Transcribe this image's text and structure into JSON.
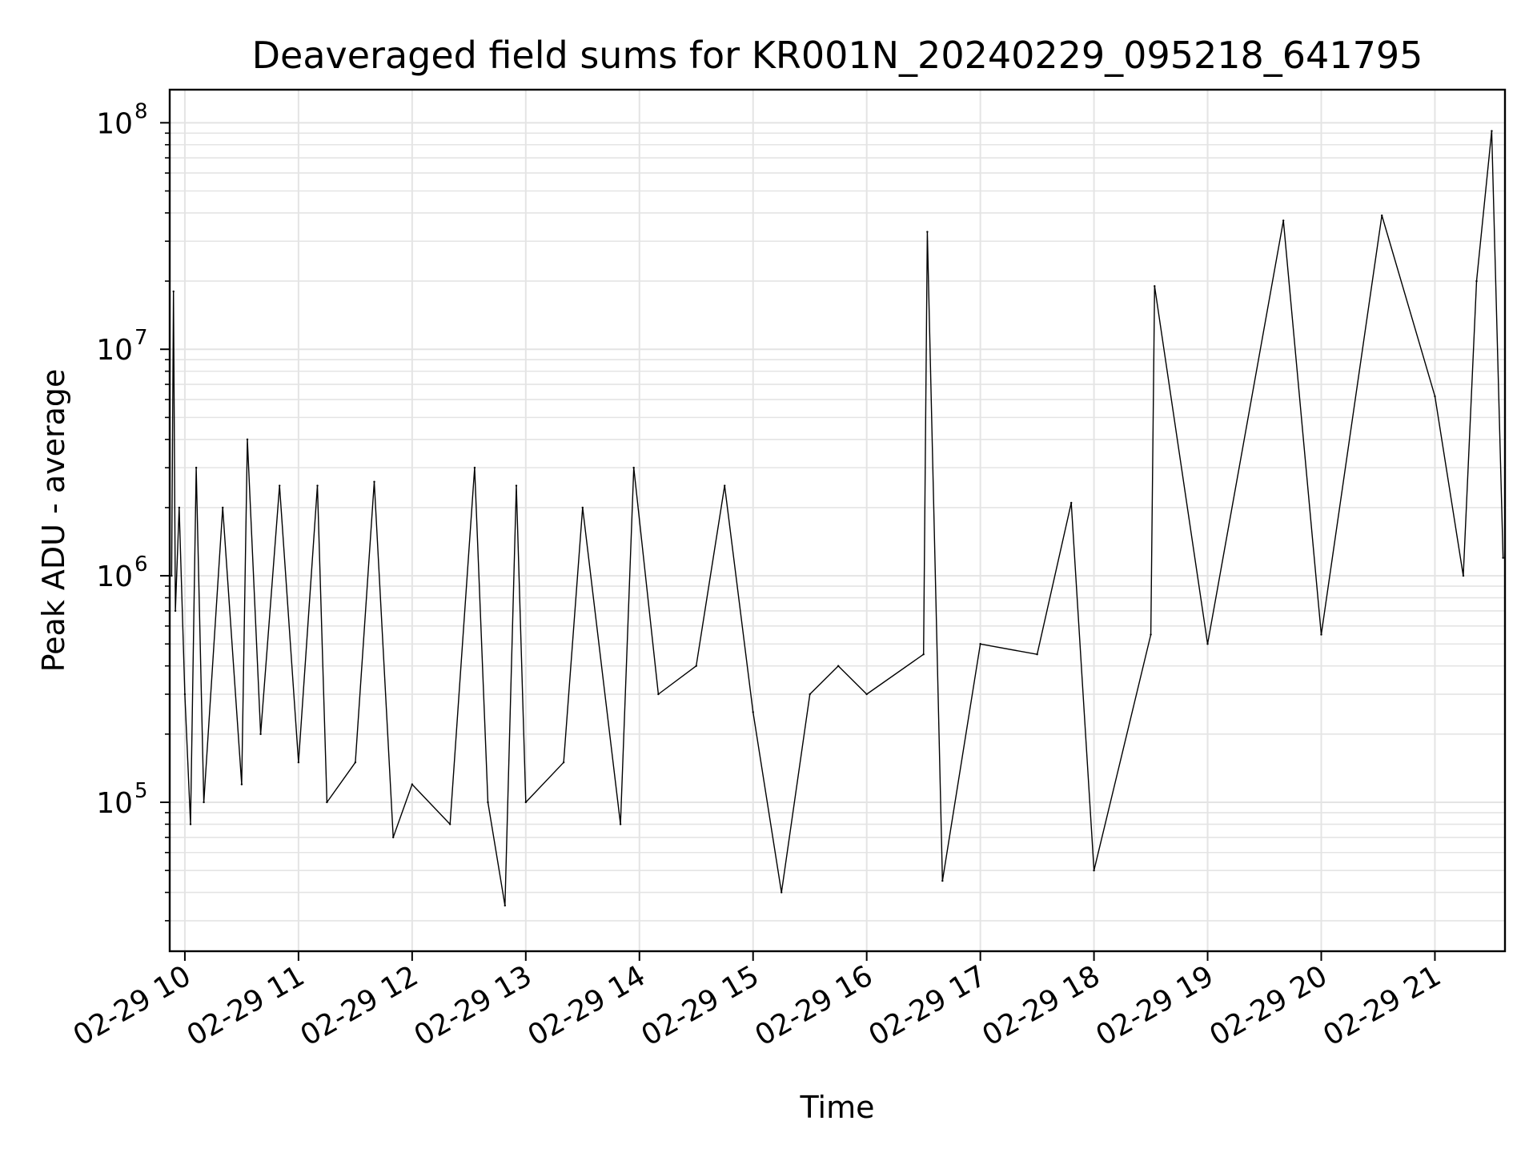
{
  "chart_data": {
    "type": "line",
    "title": "Deaveraged field sums for KR001N_20240229_095218_641795",
    "xlabel": "Time",
    "ylabel": "Peak ADU - average",
    "yscale": "log",
    "ylim": [
      22000,
      140000000
    ],
    "xlim": [
      "2024-02-29 09:52",
      "2024-02-29 21:37"
    ],
    "grid": true,
    "line_color": "#000000",
    "grid_color": "#e4e4e4",
    "x_ticks": [
      {
        "t": "2024-02-29 10:00",
        "label": "02-29 10"
      },
      {
        "t": "2024-02-29 11:00",
        "label": "02-29 11"
      },
      {
        "t": "2024-02-29 12:00",
        "label": "02-29 12"
      },
      {
        "t": "2024-02-29 13:00",
        "label": "02-29 13"
      },
      {
        "t": "2024-02-29 14:00",
        "label": "02-29 14"
      },
      {
        "t": "2024-02-29 15:00",
        "label": "02-29 15"
      },
      {
        "t": "2024-02-29 16:00",
        "label": "02-29 16"
      },
      {
        "t": "2024-02-29 17:00",
        "label": "02-29 17"
      },
      {
        "t": "2024-02-29 18:00",
        "label": "02-29 18"
      },
      {
        "t": "2024-02-29 19:00",
        "label": "02-29 19"
      },
      {
        "t": "2024-02-29 20:00",
        "label": "02-29 20"
      },
      {
        "t": "2024-02-29 21:00",
        "label": "02-29 21"
      }
    ],
    "y_ticks": [
      {
        "value": 100000,
        "base": "10",
        "exp": "5"
      },
      {
        "value": 1000000,
        "base": "10",
        "exp": "6"
      },
      {
        "value": 10000000,
        "base": "10",
        "exp": "7"
      },
      {
        "value": 100000000,
        "base": "10",
        "exp": "8"
      }
    ],
    "series": [
      {
        "points": [
          [
            "2024-02-29 09:53",
            1000000
          ],
          [
            "2024-02-29 09:54",
            18000000
          ],
          [
            "2024-02-29 09:55",
            700000
          ],
          [
            "2024-02-29 09:57",
            2000000
          ],
          [
            "2024-02-29 10:00",
            300000
          ],
          [
            "2024-02-29 10:03",
            80000
          ],
          [
            "2024-02-29 10:06",
            3000000
          ],
          [
            "2024-02-29 10:10",
            100000
          ],
          [
            "2024-02-29 10:20",
            2000000
          ],
          [
            "2024-02-29 10:30",
            120000
          ],
          [
            "2024-02-29 10:33",
            4000000
          ],
          [
            "2024-02-29 10:40",
            200000
          ],
          [
            "2024-02-29 10:50",
            2500000
          ],
          [
            "2024-02-29 11:00",
            150000
          ],
          [
            "2024-02-29 11:10",
            2500000
          ],
          [
            "2024-02-29 11:15",
            100000
          ],
          [
            "2024-02-29 11:30",
            150000
          ],
          [
            "2024-02-29 11:40",
            2600000
          ],
          [
            "2024-02-29 11:50",
            70000
          ],
          [
            "2024-02-29 12:00",
            120000
          ],
          [
            "2024-02-29 12:20",
            80000
          ],
          [
            "2024-02-29 12:33",
            3000000
          ],
          [
            "2024-02-29 12:40",
            100000
          ],
          [
            "2024-02-29 12:49",
            35000
          ],
          [
            "2024-02-29 12:55",
            2500000
          ],
          [
            "2024-02-29 13:00",
            100000
          ],
          [
            "2024-02-29 13:20",
            150000
          ],
          [
            "2024-02-29 13:30",
            2000000
          ],
          [
            "2024-02-29 13:50",
            80000
          ],
          [
            "2024-02-29 13:57",
            3000000
          ],
          [
            "2024-02-29 14:10",
            300000
          ],
          [
            "2024-02-29 14:30",
            400000
          ],
          [
            "2024-02-29 14:45",
            2500000
          ],
          [
            "2024-02-29 15:00",
            250000
          ],
          [
            "2024-02-29 15:15",
            40000
          ],
          [
            "2024-02-29 15:30",
            300000
          ],
          [
            "2024-02-29 15:45",
            400000
          ],
          [
            "2024-02-29 16:00",
            300000
          ],
          [
            "2024-02-29 16:30",
            450000
          ],
          [
            "2024-02-29 16:32",
            33000000
          ],
          [
            "2024-02-29 16:40",
            45000
          ],
          [
            "2024-02-29 17:00",
            500000
          ],
          [
            "2024-02-29 17:30",
            450000
          ],
          [
            "2024-02-29 17:48",
            2100000
          ],
          [
            "2024-02-29 18:00",
            50000
          ],
          [
            "2024-02-29 18:30",
            550000
          ],
          [
            "2024-02-29 18:32",
            19000000
          ],
          [
            "2024-02-29 19:00",
            500000
          ],
          [
            "2024-02-29 19:40",
            37000000
          ],
          [
            "2024-02-29 20:00",
            550000
          ],
          [
            "2024-02-29 20:32",
            39000000
          ],
          [
            "2024-02-29 21:00",
            6200000
          ],
          [
            "2024-02-29 21:15",
            1000000
          ],
          [
            "2024-02-29 21:22",
            20000000
          ],
          [
            "2024-02-29 21:30",
            92000000
          ],
          [
            "2024-02-29 21:36",
            1200000
          ]
        ]
      }
    ]
  }
}
